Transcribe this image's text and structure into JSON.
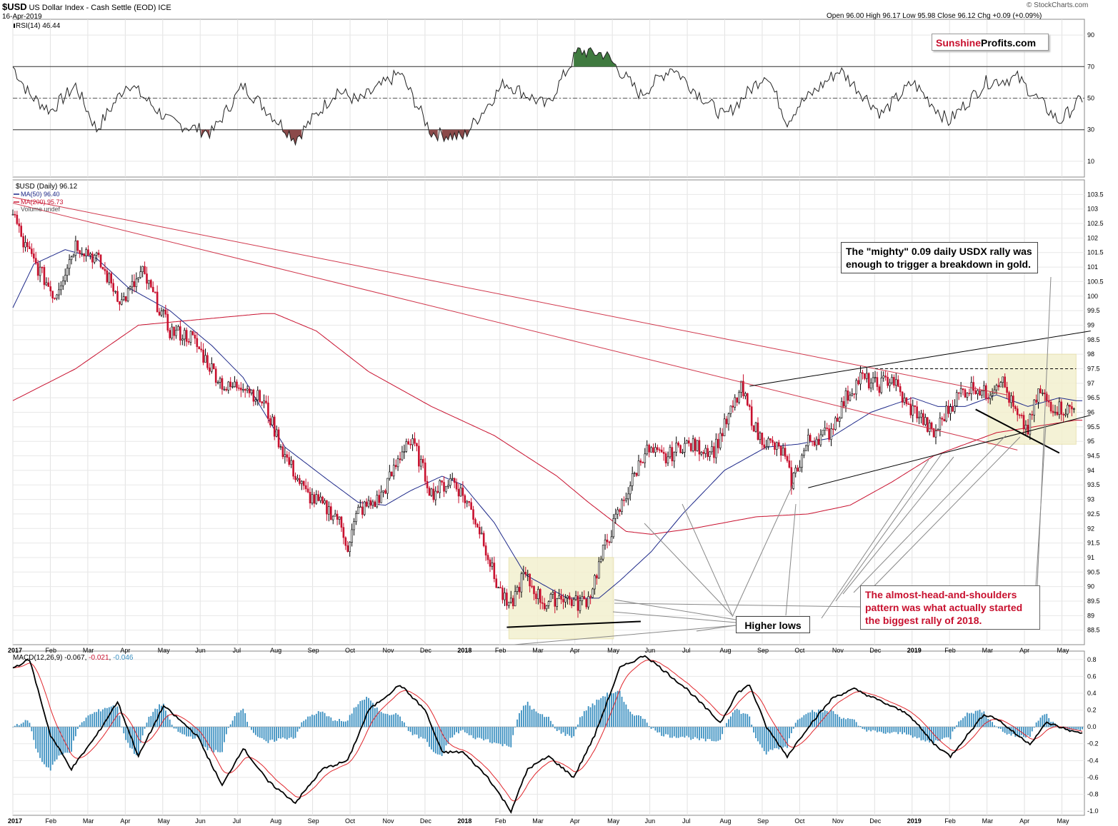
{
  "header": {
    "ticker": "$USD",
    "name": "US Dollar Index - Cash Settle (EOD) ICE",
    "date": "16-Apr-2019",
    "copyright": "© StockCharts.com",
    "ohlc": "Open 96.00  High 96.17  Low 95.98  Close 96.12  Chg +0.09 (+0.09%)"
  },
  "brand": {
    "part1": "Sunshine",
    "part2": "Profits.com"
  },
  "annotations": {
    "mighty_line1": "The \"mighty\" 0.09 daily USDX rally was",
    "mighty_line2": "enough to trigger a breakdown in gold.",
    "higher_lows": "Higher lows",
    "hs_line1": "The almost-head-and-shoulders",
    "hs_line2": "pattern was what actually started",
    "hs_line3": "the biggest rally of 2018."
  },
  "colors": {
    "price_up": "#000000",
    "price_down": "#c8102e",
    "ma50": "#1f2a8a",
    "ma200": "#c8102e",
    "macd_hist": "#3a8fc0",
    "rsi_over": "#3f7a3f",
    "rsi_under": "#8b4a4a",
    "box_fill": "#f3f0cf"
  },
  "chart_data": [
    {
      "type": "line",
      "title": "RSI(14) 46.44",
      "legend": [
        "RSI(14) 46.44"
      ],
      "y_ticks": [
        10,
        30,
        50,
        70,
        90
      ],
      "ylim": [
        0,
        100
      ],
      "overbought": 70,
      "oversold": 30,
      "knots": [
        [
          0,
          70
        ],
        [
          8,
          52
        ],
        [
          18,
          42
        ],
        [
          30,
          58
        ],
        [
          40,
          30
        ],
        [
          55,
          60
        ],
        [
          75,
          35
        ],
        [
          95,
          28
        ],
        [
          110,
          58
        ],
        [
          135,
          24
        ],
        [
          155,
          55
        ],
        [
          165,
          48
        ],
        [
          185,
          66
        ],
        [
          200,
          28
        ],
        [
          215,
          25
        ],
        [
          235,
          60
        ],
        [
          255,
          45
        ],
        [
          270,
          80
        ],
        [
          283,
          78
        ],
        [
          300,
          52
        ],
        [
          315,
          70
        ],
        [
          325,
          56
        ],
        [
          340,
          38
        ],
        [
          360,
          66
        ],
        [
          370,
          35
        ],
        [
          375,
          45
        ],
        [
          395,
          68
        ],
        [
          415,
          40
        ],
        [
          430,
          60
        ],
        [
          447,
          35
        ],
        [
          465,
          60
        ],
        [
          480,
          63
        ],
        [
          500,
          35
        ],
        [
          511,
          50
        ]
      ],
      "x_labels": [
        "2017",
        "Feb",
        "Mar",
        "Apr",
        "May",
        "Jun",
        "Jul",
        "Aug",
        "Sep",
        "Oct",
        "Nov",
        "Dec",
        "2018",
        "Feb",
        "Mar",
        "Apr",
        "May",
        "Jun",
        "Jul",
        "Aug",
        "Sep",
        "Oct",
        "Nov",
        "Dec",
        "2019",
        "Feb",
        "Mar",
        "Apr",
        "May"
      ]
    },
    {
      "type": "line",
      "title": "$USD (Daily) 96.12",
      "legend": [
        "$USD (Daily) 96.12",
        "MA(50) 96.40",
        "MA(200) 95.73",
        "Volume undef"
      ],
      "y_ticks": [
        88.5,
        89.0,
        89.5,
        90.0,
        90.5,
        91.0,
        91.5,
        92.0,
        92.5,
        93.0,
        93.5,
        94.0,
        94.5,
        95.0,
        95.5,
        96.0,
        96.5,
        97.0,
        97.5,
        98.0,
        98.5,
        99.0,
        99.5,
        100.0,
        100.5,
        101.0,
        101.5,
        102.0,
        102.5,
        103.0,
        103.5
      ],
      "ylim": [
        88.0,
        104.0
      ],
      "price_knots": [
        [
          0,
          102.9
        ],
        [
          5,
          101.8
        ],
        [
          20,
          100.0
        ],
        [
          30,
          101.8
        ],
        [
          40,
          101.3
        ],
        [
          52,
          99.8
        ],
        [
          62,
          100.8
        ],
        [
          75,
          98.8
        ],
        [
          85,
          98.6
        ],
        [
          95,
          97.5
        ],
        [
          102,
          96.8
        ],
        [
          110,
          97.0
        ],
        [
          120,
          96.3
        ],
        [
          130,
          94.5
        ],
        [
          140,
          93.2
        ],
        [
          155,
          92.4
        ],
        [
          160,
          91.4
        ],
        [
          165,
          92.6
        ],
        [
          175,
          93.0
        ],
        [
          182,
          94.0
        ],
        [
          188,
          95.0
        ],
        [
          192,
          94.8
        ],
        [
          200,
          93.2
        ],
        [
          210,
          93.7
        ],
        [
          218,
          92.8
        ],
        [
          225,
          91.6
        ],
        [
          230,
          90.3
        ],
        [
          237,
          89.2
        ],
        [
          244,
          90.4
        ],
        [
          254,
          89.4
        ],
        [
          262,
          89.7
        ],
        [
          270,
          89.4
        ],
        [
          275,
          89.6
        ],
        [
          283,
          91.4
        ],
        [
          292,
          93.0
        ],
        [
          302,
          94.7
        ],
        [
          312,
          94.4
        ],
        [
          320,
          94.9
        ],
        [
          335,
          94.7
        ],
        [
          348,
          96.8
        ],
        [
          356,
          95.2
        ],
        [
          362,
          94.9
        ],
        [
          368,
          94.6
        ],
        [
          372,
          93.6
        ],
        [
          380,
          95.0
        ],
        [
          390,
          95.3
        ],
        [
          398,
          96.5
        ],
        [
          405,
          97.2
        ],
        [
          413,
          96.9
        ],
        [
          420,
          97.2
        ],
        [
          427,
          96.2
        ],
        [
          432,
          96.0
        ],
        [
          440,
          95.2
        ],
        [
          445,
          95.9
        ],
        [
          453,
          96.7
        ],
        [
          460,
          96.9
        ],
        [
          465,
          96.6
        ],
        [
          472,
          97.2
        ],
        [
          480,
          95.8
        ],
        [
          485,
          95.4
        ],
        [
          490,
          96.7
        ],
        [
          497,
          96.2
        ],
        [
          503,
          96.1
        ],
        [
          508,
          96.12
        ]
      ],
      "ma50_knots": [
        [
          0,
          99.6
        ],
        [
          10,
          101.1
        ],
        [
          25,
          101.6
        ],
        [
          40,
          101.3
        ],
        [
          55,
          100.3
        ],
        [
          75,
          99.5
        ],
        [
          95,
          98.3
        ],
        [
          110,
          97.2
        ],
        [
          130,
          94.8
        ],
        [
          150,
          93.7
        ],
        [
          165,
          92.9
        ],
        [
          178,
          92.8
        ],
        [
          190,
          93.3
        ],
        [
          205,
          93.8
        ],
        [
          215,
          93.5
        ],
        [
          230,
          92.2
        ],
        [
          245,
          90.4
        ],
        [
          265,
          89.6
        ],
        [
          280,
          89.6
        ],
        [
          290,
          90.2
        ],
        [
          305,
          91.2
        ],
        [
          320,
          92.5
        ],
        [
          340,
          94.0
        ],
        [
          360,
          94.8
        ],
        [
          375,
          94.9
        ],
        [
          390,
          95.1
        ],
        [
          410,
          96.0
        ],
        [
          430,
          96.5
        ],
        [
          442,
          96.2
        ],
        [
          455,
          96.2
        ],
        [
          470,
          96.6
        ],
        [
          485,
          96.2
        ],
        [
          500,
          96.5
        ],
        [
          508,
          96.4
        ]
      ],
      "ma200_knots": [
        [
          0,
          96.4
        ],
        [
          30,
          97.5
        ],
        [
          60,
          99.0
        ],
        [
          90,
          99.2
        ],
        [
          120,
          99.4
        ],
        [
          125,
          99.4
        ],
        [
          145,
          98.8
        ],
        [
          170,
          97.4
        ],
        [
          200,
          96.2
        ],
        [
          230,
          95.2
        ],
        [
          260,
          93.8
        ],
        [
          275,
          92.9
        ],
        [
          293,
          91.9
        ],
        [
          305,
          91.8
        ],
        [
          325,
          92.0
        ],
        [
          355,
          92.4
        ],
        [
          380,
          92.5
        ],
        [
          400,
          92.8
        ],
        [
          420,
          93.6
        ],
        [
          440,
          94.5
        ],
        [
          470,
          95.3
        ],
        [
          508,
          95.73
        ]
      ],
      "highlight_boxes": [
        {
          "x_from": 237,
          "x_to": 287,
          "y_from": 88.2,
          "y_to": 91.0
        },
        {
          "x_from": 466,
          "x_to": 508,
          "y_from": 94.9,
          "y_to": 98.0
        }
      ],
      "trendlines": [
        {
          "from": [
            0,
            103.4
          ],
          "to": [
            475,
            96.6
          ],
          "color": "red"
        },
        {
          "from": [
            0,
            103.2
          ],
          "to": [
            480,
            94.7
          ],
          "color": "red"
        },
        {
          "from": [
            352,
            96.9
          ],
          "to": [
            515,
            98.8
          ],
          "color": "black"
        },
        {
          "from": [
            380,
            93.4
          ],
          "to": [
            515,
            95.9
          ],
          "color": "black"
        },
        {
          "from": [
            236,
            88.6
          ],
          "to": [
            300,
            88.8
          ],
          "color": "black",
          "bold": true
        },
        {
          "from": [
            460,
            96.1
          ],
          "to": [
            500,
            94.6
          ],
          "color": "black",
          "bold": true
        },
        {
          "from": [
            412,
            97.5
          ],
          "to": [
            508,
            97.5
          ],
          "color": "black",
          "dashed": true
        }
      ],
      "x_labels": [
        "2017",
        "Feb",
        "Mar",
        "Apr",
        "May",
        "Jun",
        "Jul",
        "Aug",
        "Sep",
        "Oct",
        "Nov",
        "Dec",
        "2018",
        "Feb",
        "Mar",
        "Apr",
        "May",
        "Jun",
        "Jul",
        "Aug",
        "Sep",
        "Oct",
        "Nov",
        "Dec",
        "2019",
        "Feb",
        "Mar",
        "Apr",
        "May"
      ]
    },
    {
      "type": "line",
      "title": "MACD(12,26,9) -0.067, -0.021, -0.046",
      "legend": [
        "MACD(12,26,9) -0.067",
        "-0.021",
        "-0.046"
      ],
      "y_ticks": [
        -1.0,
        -0.8,
        -0.6,
        -0.4,
        -0.2,
        0.0,
        0.2,
        0.4,
        0.6,
        0.8
      ],
      "y_tick_labels": [
        "-1.0",
        "-0.8",
        "-0.6",
        "-0.4",
        "-0.2",
        "0.0",
        "0.2",
        "0.4",
        "0.6",
        "0.8"
      ],
      "ylim": [
        -1.05,
        0.9
      ],
      "knots": [
        [
          0,
          0.7
        ],
        [
          8,
          0.8
        ],
        [
          18,
          -0.1
        ],
        [
          28,
          -0.5
        ],
        [
          40,
          -0.1
        ],
        [
          50,
          0.3
        ],
        [
          60,
          -0.35
        ],
        [
          72,
          0.25
        ],
        [
          88,
          -0.1
        ],
        [
          100,
          -0.7
        ],
        [
          110,
          -0.25
        ],
        [
          122,
          -0.65
        ],
        [
          135,
          -0.9
        ],
        [
          148,
          -0.5
        ],
        [
          160,
          -0.4
        ],
        [
          170,
          0.2
        ],
        [
          185,
          0.5
        ],
        [
          197,
          0.2
        ],
        [
          205,
          -0.3
        ],
        [
          215,
          -0.3
        ],
        [
          227,
          -0.6
        ],
        [
          238,
          -1.0
        ],
        [
          246,
          -0.5
        ],
        [
          256,
          -0.35
        ],
        [
          268,
          -0.6
        ],
        [
          278,
          -0.1
        ],
        [
          290,
          0.7
        ],
        [
          302,
          0.85
        ],
        [
          312,
          0.65
        ],
        [
          322,
          0.45
        ],
        [
          338,
          0.05
        ],
        [
          346,
          0.4
        ],
        [
          352,
          0.5
        ],
        [
          360,
          0.0
        ],
        [
          370,
          -0.35
        ],
        [
          380,
          0.0
        ],
        [
          392,
          0.35
        ],
        [
          402,
          0.45
        ],
        [
          415,
          0.3
        ],
        [
          428,
          0.15
        ],
        [
          440,
          -0.2
        ],
        [
          448,
          -0.35
        ],
        [
          456,
          -0.1
        ],
        [
          464,
          0.15
        ],
        [
          470,
          0.1
        ],
        [
          480,
          -0.1
        ],
        [
          486,
          -0.2
        ],
        [
          494,
          0.05
        ],
        [
          500,
          0.0
        ],
        [
          508,
          -0.067
        ]
      ],
      "x_labels": [
        "2017",
        "Feb",
        "Mar",
        "Apr",
        "May",
        "Jun",
        "Jul",
        "Aug",
        "Sep",
        "Oct",
        "Nov",
        "Dec",
        "2018",
        "Feb",
        "Mar",
        "Apr",
        "May",
        "Jun",
        "Jul",
        "Aug",
        "Sep",
        "Oct",
        "Nov",
        "Dec",
        "2019",
        "Feb",
        "Mar",
        "Apr",
        "May"
      ]
    }
  ]
}
